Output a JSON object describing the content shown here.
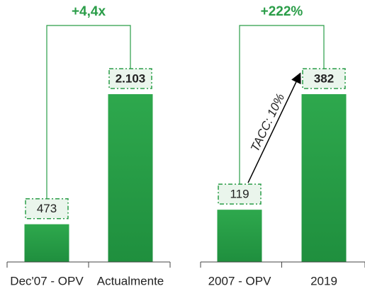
{
  "chart_data": [
    {
      "type": "bar",
      "annotation": "+4,4x",
      "categories": [
        "Dec'07 - OPV",
        "Actualmente"
      ],
      "values": [
        473,
        2103
      ],
      "value_labels": [
        "473",
        "2.103"
      ],
      "color": "#2a9d48"
    },
    {
      "type": "bar",
      "annotation": "+222%",
      "trend_label": "TACC: 10%",
      "categories": [
        "2007 - OPV",
        "2019"
      ],
      "values": [
        119,
        382
      ],
      "color": "#2a9d48"
    }
  ]
}
